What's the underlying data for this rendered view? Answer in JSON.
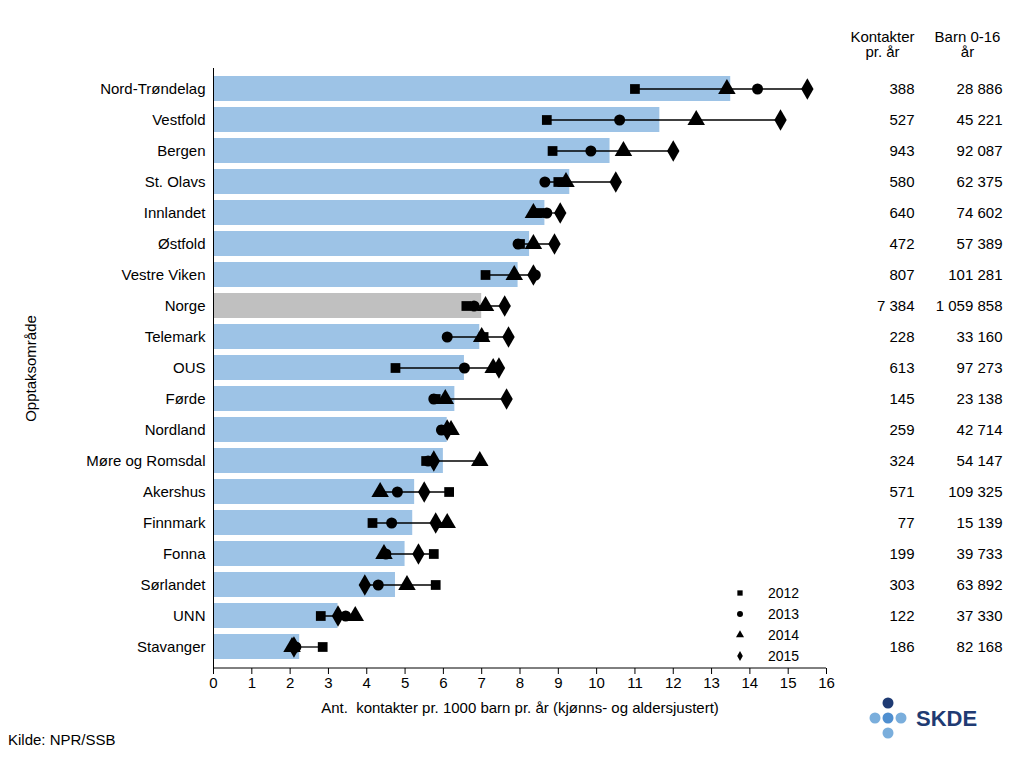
{
  "chart_data": {
    "type": "bar",
    "orientation": "horizontal",
    "x_label": "Ant.  kontakter pr. 1000 barn pr. år (kjønns- og aldersjustert)",
    "y_label": "Opptaksområde",
    "source": "Kilde: NPR/SSB",
    "logo": "SKDE",
    "categories": [
      "Nord-Trøndelag",
      "Vestfold",
      "Bergen",
      "St. Olavs",
      "Innlandet",
      "Østfold",
      "Vestre Viken",
      "Norge",
      "Telemark",
      "OUS",
      "Førde",
      "Nordland",
      "Møre og Romsdal",
      "Akershus",
      "Finnmark",
      "Fonna",
      "Sørlandet",
      "UNN",
      "Stavanger"
    ],
    "values": [
      13.5,
      11.65,
      10.35,
      9.3,
      8.65,
      8.25,
      7.95,
      7.0,
      6.95,
      6.55,
      6.3,
      6.1,
      6.0,
      5.25,
      5.2,
      5.0,
      4.75,
      3.25,
      2.25
    ],
    "colors": [
      "#9dc3e6",
      "#9dc3e6",
      "#9dc3e6",
      "#9dc3e6",
      "#9dc3e6",
      "#9dc3e6",
      "#9dc3e6",
      "#c0c0c0",
      "#9dc3e6",
      "#9dc3e6",
      "#9dc3e6",
      "#9dc3e6",
      "#9dc3e6",
      "#9dc3e6",
      "#9dc3e6",
      "#9dc3e6",
      "#9dc3e6",
      "#9dc3e6",
      "#9dc3e6"
    ],
    "series": [
      {
        "name": "2012",
        "marker": "square",
        "color": "#000000",
        "values": [
          11.0,
          8.7,
          8.85,
          9.0,
          8.5,
          8.0,
          7.1,
          6.6,
          7.05,
          4.75,
          5.8,
          6.0,
          5.55,
          6.15,
          4.15,
          5.75,
          5.8,
          2.8,
          2.85
        ]
      },
      {
        "name": "2013",
        "marker": "circle",
        "color": "#000000",
        "values": [
          14.2,
          10.6,
          9.85,
          8.65,
          8.7,
          7.95,
          8.4,
          6.8,
          6.1,
          6.55,
          5.75,
          5.95,
          5.6,
          4.8,
          4.65,
          4.5,
          4.3,
          3.45,
          2.15
        ]
      },
      {
        "name": "2014",
        "marker": "triangle",
        "color": "#000000",
        "values": [
          13.4,
          12.6,
          10.7,
          9.2,
          8.35,
          8.35,
          7.85,
          7.1,
          7.0,
          7.3,
          6.05,
          6.2,
          6.95,
          4.35,
          6.1,
          4.45,
          5.05,
          3.7,
          2.05
        ]
      },
      {
        "name": "2015",
        "marker": "diamond",
        "color": "#000000",
        "values": [
          15.5,
          14.8,
          12.0,
          10.5,
          9.05,
          8.9,
          8.35,
          7.6,
          7.7,
          7.45,
          7.65,
          6.1,
          5.75,
          5.5,
          5.8,
          5.35,
          3.95,
          3.25,
          2.1
        ]
      }
    ],
    "xlim": [
      0,
      16
    ],
    "xticks": [
      0,
      1,
      2,
      3,
      4,
      5,
      6,
      7,
      8,
      9,
      10,
      11,
      12,
      13,
      14,
      15,
      16
    ],
    "grid": false,
    "legend": "bottom-right",
    "table": {
      "columns": [
        {
          "header": [
            "Kontakter",
            "pr. år"
          ],
          "cells": [
            "388",
            "527",
            "943",
            "580",
            "640",
            "472",
            "807",
            "7 384",
            "228",
            "613",
            "145",
            "259",
            "324",
            "571",
            "77",
            "199",
            "303",
            "122",
            "186"
          ]
        },
        {
          "header": [
            "Barn 0-16",
            "år"
          ],
          "cells": [
            "28 886",
            "45 221",
            "92 087",
            "62 375",
            "74 602",
            "57 389",
            "101 281",
            "1 059 858",
            "33 160",
            "97 273",
            "23 138",
            "42 714",
            "54 147",
            "109 325",
            "15 139",
            "39 733",
            "63 892",
            "37 330",
            "82 168"
          ]
        }
      ]
    }
  }
}
